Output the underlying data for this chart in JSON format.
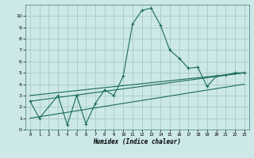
{
  "xlabel": "Humidex (Indice chaleur)",
  "bg_color": "#cce8e8",
  "grid_color": "#aacaca",
  "line_color": "#1a6b5a",
  "xlim": [
    -0.5,
    23.5
  ],
  "ylim": [
    0,
    11
  ],
  "xticks": [
    0,
    1,
    2,
    3,
    4,
    5,
    6,
    7,
    8,
    9,
    10,
    11,
    12,
    13,
    14,
    15,
    16,
    17,
    18,
    19,
    20,
    21,
    22,
    23
  ],
  "yticks": [
    0,
    1,
    2,
    3,
    4,
    5,
    6,
    7,
    8,
    9,
    10
  ],
  "series": [
    {
      "x": [
        0,
        1,
        3,
        4,
        5,
        6,
        7,
        8,
        9,
        10,
        11,
        12,
        13,
        14,
        15,
        16,
        17,
        18,
        19,
        20,
        21,
        22,
        23
      ],
      "y": [
        2.5,
        1.0,
        3.0,
        0.4,
        3.0,
        0.5,
        2.3,
        3.5,
        3.0,
        4.7,
        9.3,
        10.5,
        10.7,
        9.2,
        7.0,
        6.3,
        5.4,
        5.5,
        3.8,
        4.7,
        4.8,
        5.0,
        5.0
      ],
      "has_markers": true
    },
    {
      "x": [
        0,
        23
      ],
      "y": [
        2.5,
        5.0
      ],
      "has_markers": false
    },
    {
      "x": [
        0,
        23
      ],
      "y": [
        3.0,
        5.0
      ],
      "has_markers": false
    },
    {
      "x": [
        0,
        23
      ],
      "y": [
        1.0,
        4.0
      ],
      "has_markers": false
    }
  ]
}
